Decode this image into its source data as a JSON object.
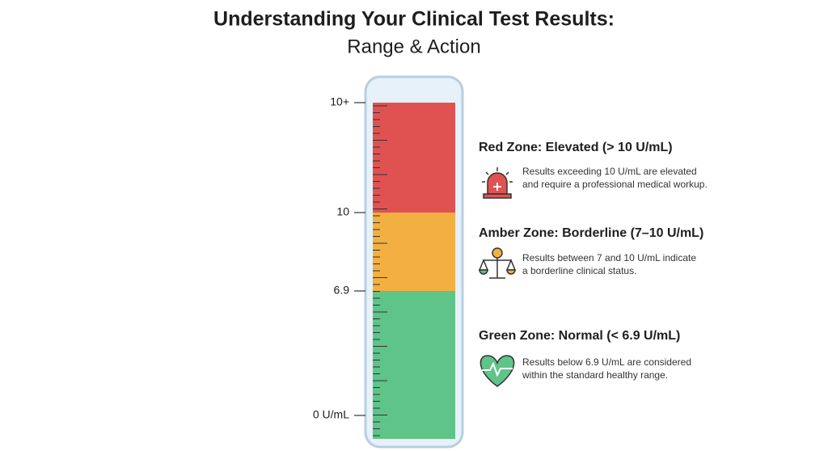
{
  "header": {
    "title": "Understanding Your Clinical Test Results:",
    "subtitle": "Range & Action"
  },
  "scale": {
    "labels": [
      "10+",
      "10",
      "6.9",
      "0 U/mL"
    ]
  },
  "zones": [
    {
      "heading": "Red Zone: Elevated (> 10 U/mL)",
      "description": [
        "Results exceeding 10 U/mL are elevated",
        "and require a professional medical workup."
      ]
    },
    {
      "heading": "Amber Zone: Borderline (7–10 U/mL)",
      "description": [
        "Results between 7 and 10 U/mL indicate",
        "a borderline clinical status."
      ]
    },
    {
      "heading": "Green Zone: Normal (< 6.9 U/mL)",
      "description": [
        "Results below 6.9 U/mL are considered",
        "within the standard healthy range."
      ]
    }
  ]
}
